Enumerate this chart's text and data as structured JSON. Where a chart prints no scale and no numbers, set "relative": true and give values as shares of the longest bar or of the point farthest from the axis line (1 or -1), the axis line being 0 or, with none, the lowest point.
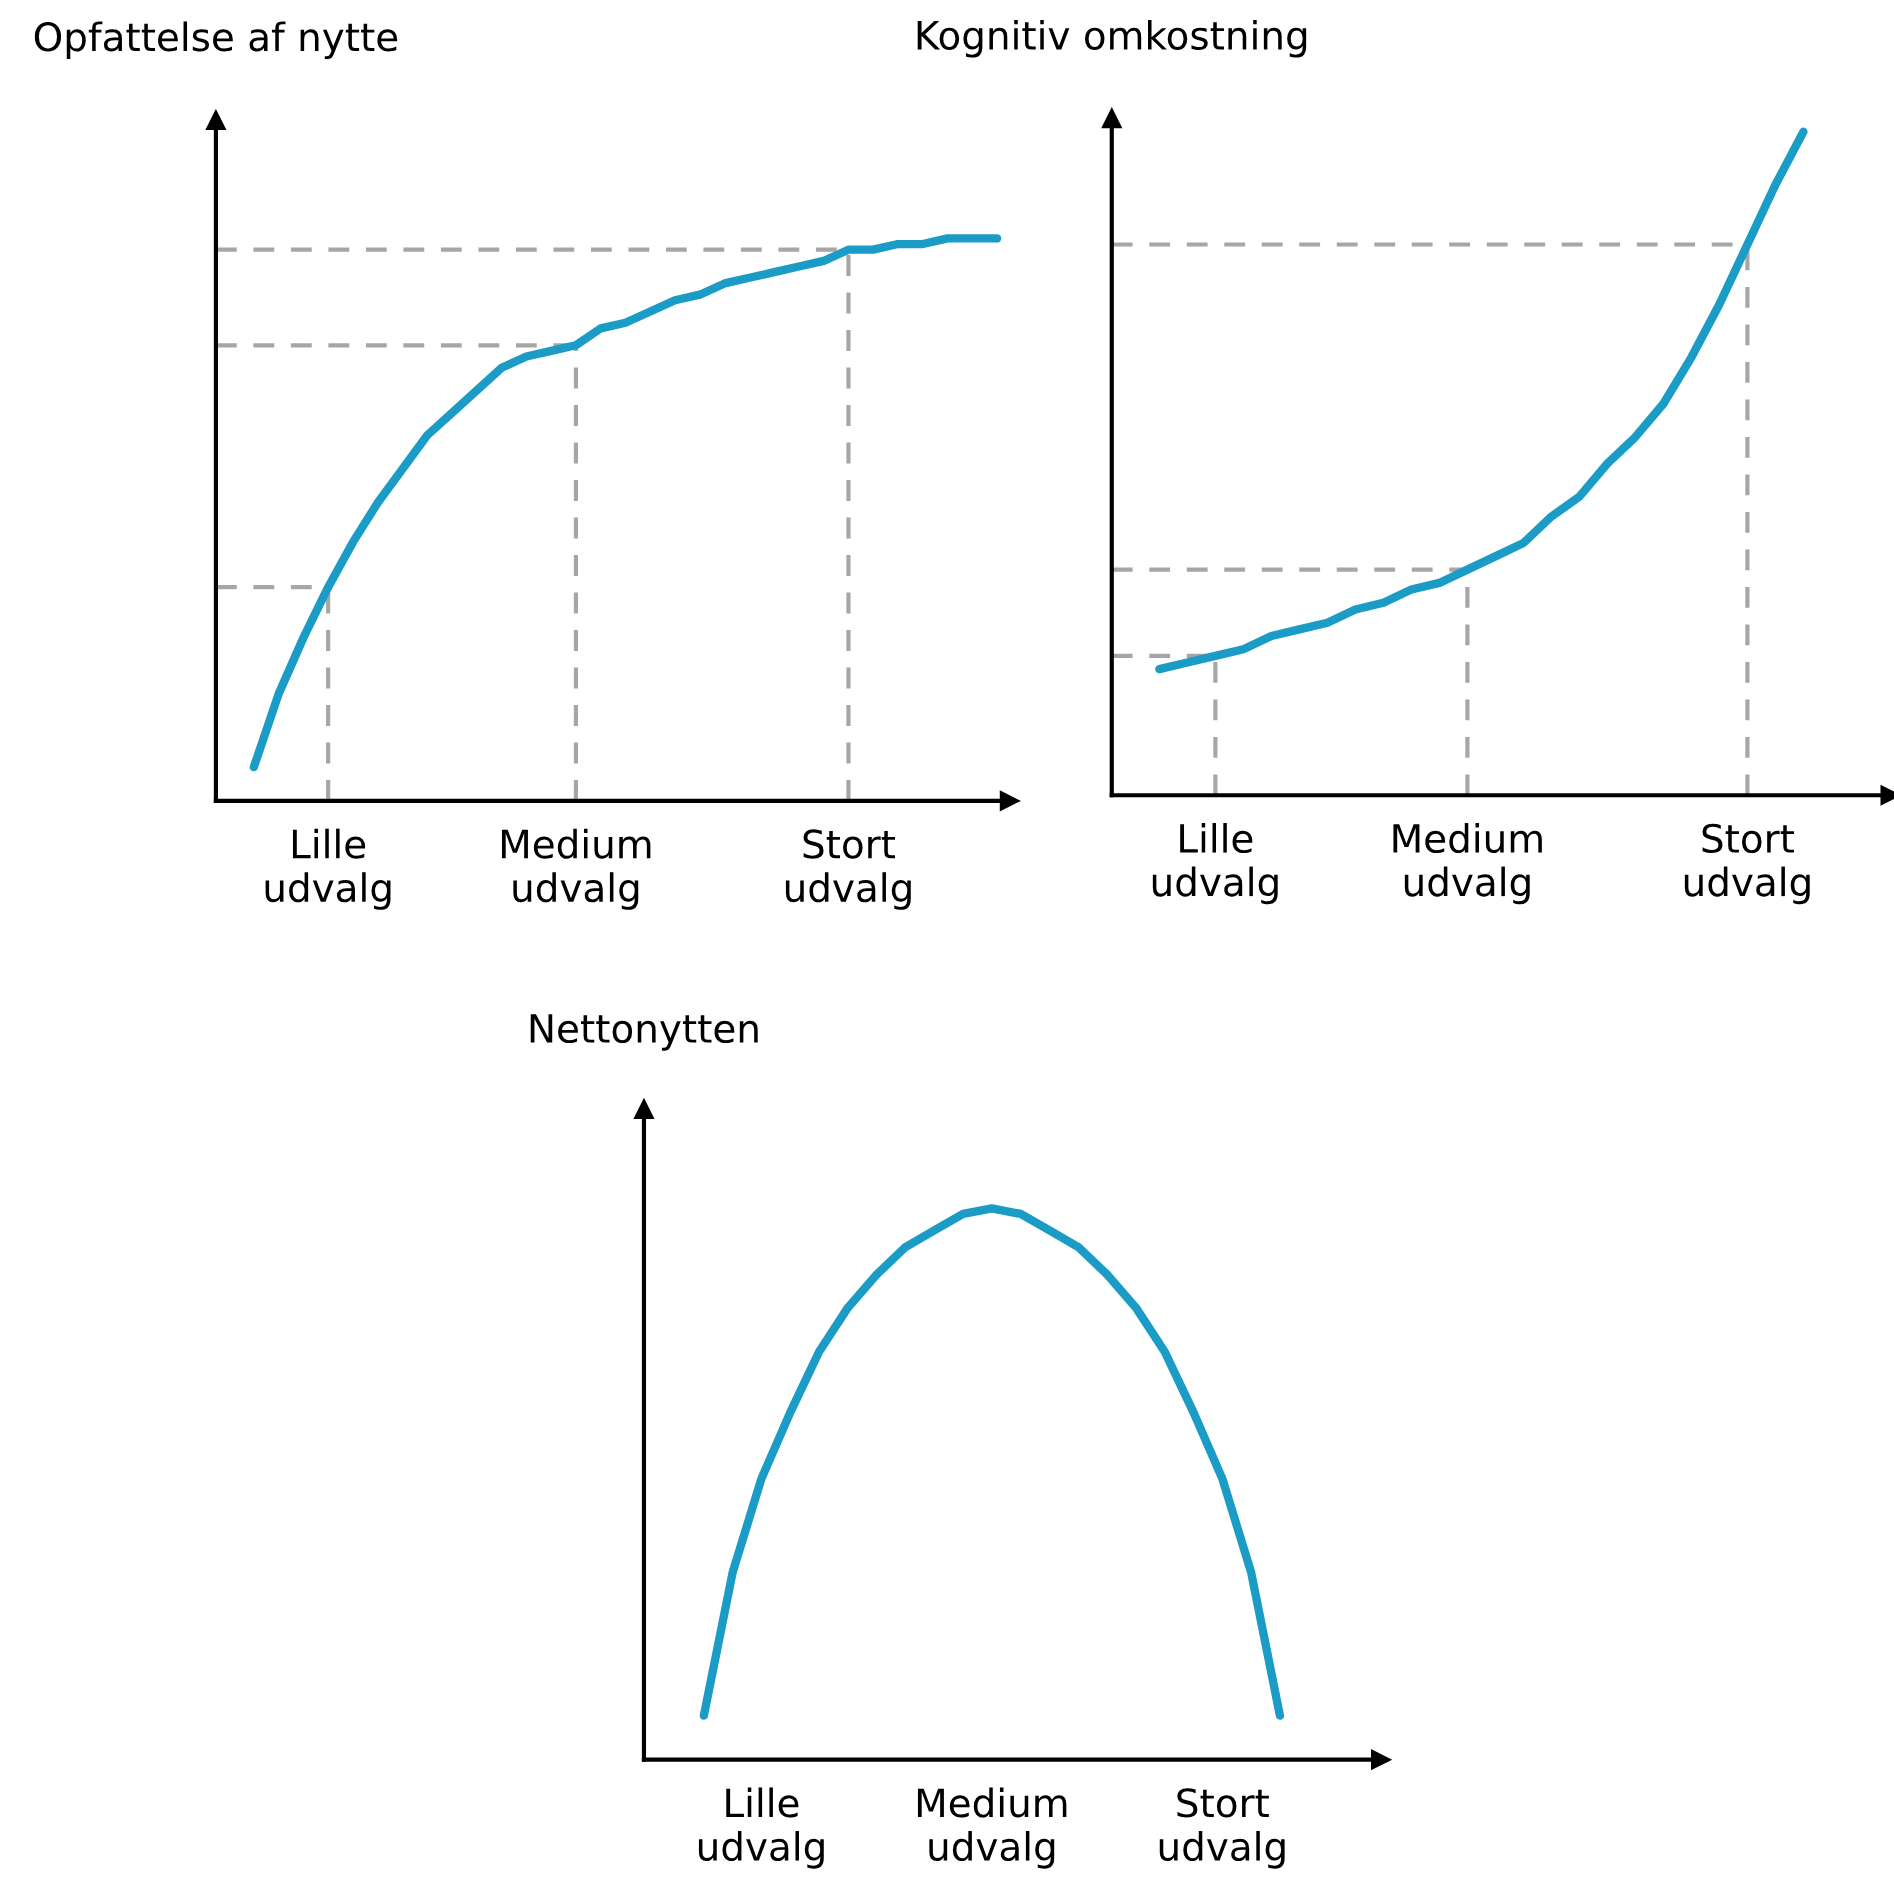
{
  "chart_data": [
    {
      "type": "line",
      "relative": true,
      "ylabel": "Opfattelse af nytte",
      "tick_labels": "x",
      "grid": false,
      "marker": "none",
      "line_style": "solid",
      "categories": [
        null,
        null,
        null,
        "Lille\nudvalg",
        null,
        null,
        null,
        null,
        null,
        null,
        null,
        null,
        null,
        "Medium\nudvalg",
        null,
        null,
        null,
        null,
        null,
        null,
        null,
        null,
        null,
        null,
        "Stort\nudvalg",
        null,
        null,
        null,
        null,
        null,
        null
      ],
      "series": [
        {
          "color": "#1a9cc6",
          "values": [
            0.06,
            0.19,
            0.29,
            0.38,
            0.46,
            0.53,
            0.59,
            0.65,
            0.69,
            0.73,
            0.77,
            0.79,
            0.8,
            0.81,
            0.84,
            0.85,
            0.87,
            0.89,
            0.9,
            0.92,
            0.93,
            0.94,
            0.95,
            0.96,
            0.98,
            0.98,
            0.99,
            0.99,
            1.0,
            1.0,
            1.0
          ]
        }
      ],
      "ref_lines": [
        {
          "axis": "x",
          "value": "Lille\nudvalg",
          "color": "#a6a6a6",
          "line_style": "dashed"
        },
        {
          "axis": "x",
          "value": "Medium\nudvalg",
          "color": "#a6a6a6",
          "line_style": "dashed"
        },
        {
          "axis": "x",
          "value": "Stort\nudvalg",
          "color": "#a6a6a6",
          "line_style": "dashed"
        },
        {
          "axis": "y",
          "value": 0.38,
          "color": "#a6a6a6",
          "line_style": "dashed"
        },
        {
          "axis": "y",
          "value": 0.81,
          "color": "#a6a6a6",
          "line_style": "dashed"
        },
        {
          "axis": "y",
          "value": 0.98,
          "color": "#a6a6a6",
          "line_style": "dashed"
        }
      ]
    },
    {
      "type": "line",
      "relative": true,
      "ylabel": "Kognitiv omkostning",
      "tick_labels": "x",
      "grid": false,
      "marker": "none",
      "line_style": "solid",
      "categories": [
        null,
        null,
        "Lille\nudvalg",
        null,
        null,
        null,
        null,
        null,
        null,
        null,
        null,
        "Medium\nudvalg",
        null,
        null,
        null,
        null,
        null,
        null,
        null,
        null,
        null,
        "Stort\nudvalg",
        null,
        null
      ],
      "series": [
        {
          "color": "#1a9cc6",
          "values": [
            0.19,
            0.2,
            0.21,
            0.22,
            0.24,
            0.25,
            0.26,
            0.28,
            0.29,
            0.31,
            0.32,
            0.34,
            0.36,
            0.38,
            0.42,
            0.45,
            0.5,
            0.54,
            0.59,
            0.66,
            0.74,
            0.83,
            0.92,
            1.0
          ]
        }
      ],
      "ref_lines": [
        {
          "axis": "x",
          "value": "Lille\nudvalg",
          "color": "#a6a6a6",
          "line_style": "dashed"
        },
        {
          "axis": "x",
          "value": "Medium\nudvalg",
          "color": "#a6a6a6",
          "line_style": "dashed"
        },
        {
          "axis": "x",
          "value": "Stort\nudvalg",
          "color": "#a6a6a6",
          "line_style": "dashed"
        },
        {
          "axis": "y",
          "value": 0.21,
          "color": "#a6a6a6",
          "line_style": "dashed"
        },
        {
          "axis": "y",
          "value": 0.34,
          "color": "#a6a6a6",
          "line_style": "dashed"
        },
        {
          "axis": "y",
          "value": 0.83,
          "color": "#a6a6a6",
          "line_style": "dashed"
        }
      ]
    },
    {
      "type": "line",
      "relative": true,
      "ylabel": "Nettonytten",
      "tick_labels": "x",
      "grid": false,
      "marker": "none",
      "line_style": "solid",
      "categories": [
        null,
        null,
        "Lille\nudvalg",
        null,
        null,
        null,
        null,
        null,
        null,
        null,
        "Medium\nudvalg",
        null,
        null,
        null,
        null,
        null,
        null,
        null,
        "Stort\nudvalg",
        null,
        null
      ],
      "series": [
        {
          "color": "#1a9cc6",
          "values": [
            0.08,
            0.34,
            0.51,
            0.63,
            0.74,
            0.82,
            0.88,
            0.93,
            0.96,
            0.99,
            1.0,
            0.99,
            0.96,
            0.93,
            0.88,
            0.82,
            0.74,
            0.63,
            0.51,
            0.34,
            0.08
          ]
        }
      ]
    }
  ]
}
